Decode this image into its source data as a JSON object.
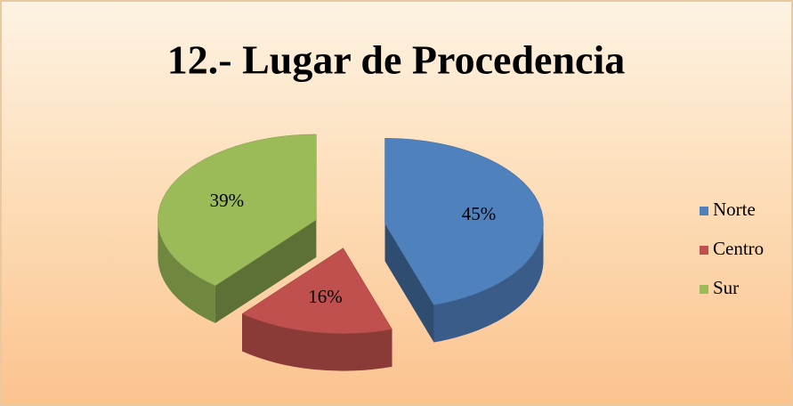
{
  "chart_data": {
    "type": "pie",
    "title": "12.- Lugar de Procedencia",
    "categories": [
      "Norte",
      "Centro",
      "Sur"
    ],
    "values": [
      45,
      16,
      39
    ],
    "value_labels": [
      "45%",
      "16%",
      "39%"
    ],
    "colors": [
      "#4f81bd",
      "#c0504d",
      "#9bbb59"
    ],
    "legend": "right"
  }
}
